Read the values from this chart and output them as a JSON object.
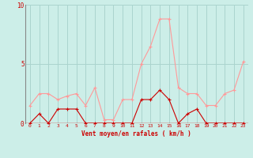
{
  "x": [
    0,
    1,
    2,
    3,
    4,
    5,
    6,
    7,
    8,
    9,
    10,
    11,
    12,
    13,
    14,
    15,
    16,
    17,
    18,
    19,
    20,
    21,
    22,
    23
  ],
  "rafales": [
    1.5,
    2.5,
    2.5,
    2.0,
    2.3,
    2.5,
    1.5,
    3.0,
    0.3,
    0.3,
    2.0,
    2.0,
    5.0,
    6.5,
    8.8,
    8.8,
    3.0,
    2.5,
    2.5,
    1.5,
    1.5,
    2.5,
    2.8,
    5.2
  ],
  "moyen": [
    0.0,
    0.8,
    0.0,
    1.2,
    1.2,
    1.2,
    0.0,
    0.0,
    0.0,
    0.0,
    0.0,
    0.0,
    2.0,
    2.0,
    2.8,
    2.0,
    0.0,
    0.8,
    1.2,
    0.0,
    0.0,
    0.0,
    0.0,
    0.0
  ],
  "bg_color": "#cceee8",
  "grid_color": "#aad4ce",
  "rafales_color": "#ff9999",
  "moyen_color": "#cc0000",
  "xlabel": "Vent moyen/en rafales ( km/h )",
  "ylim": [
    0,
    10
  ],
  "yticks": [
    0,
    5,
    10
  ],
  "xticks": [
    0,
    1,
    2,
    3,
    4,
    5,
    6,
    7,
    8,
    9,
    10,
    11,
    12,
    13,
    14,
    15,
    16,
    17,
    18,
    19,
    20,
    21,
    22,
    23
  ]
}
